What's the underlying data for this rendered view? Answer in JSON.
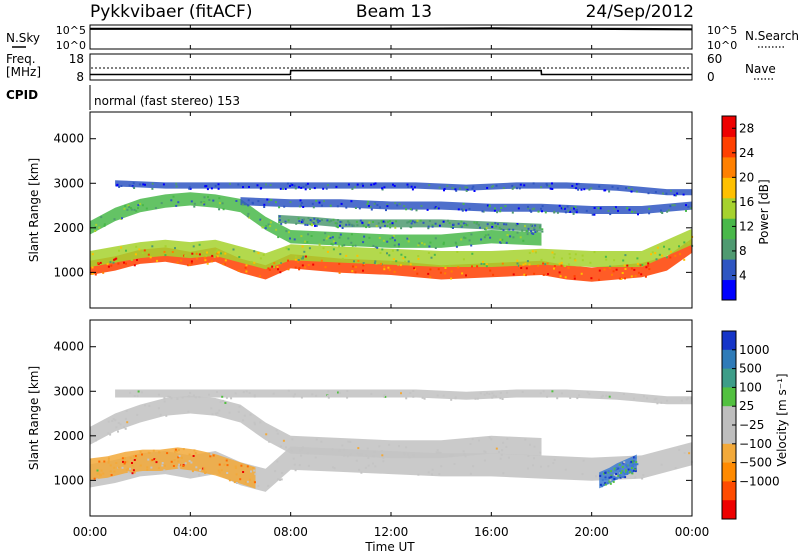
{
  "header": {
    "station": "Pykkvibaer (fitACF)",
    "beam": "Beam 13",
    "date": "24/Sep/2012"
  },
  "mode": {
    "label": "CPID",
    "text": "normal (fast stereo) 153"
  },
  "chart_data": [
    {
      "type": "line",
      "name": "noise-panel",
      "left_label": "N.Sky",
      "right_label": "N.Search",
      "left_ticks": [
        "10^5",
        "10^0"
      ],
      "right_ticks": [
        "10^5",
        "10^0"
      ],
      "xlim": [
        0,
        24
      ],
      "series": [
        {
          "name": "N.Sky",
          "x": [
            0,
            4,
            8,
            12,
            16,
            20,
            24
          ],
          "y": [
            4.2,
            4.2,
            4.2,
            4.2,
            4.3,
            4.2,
            4.1
          ]
        }
      ]
    },
    {
      "type": "line",
      "name": "frequency-panel",
      "left_label": "Freq.",
      "left_unit": "[MHz]",
      "right_label": "Nave",
      "left_ticks": [
        "18",
        "8"
      ],
      "right_ticks": [
        "60",
        "0"
      ],
      "ylim": [
        8,
        18
      ],
      "xlim": [
        0,
        24
      ],
      "series": [
        {
          "name": "Freq.",
          "x": [
            0,
            7.99,
            8.0,
            17.99,
            18.0,
            24
          ],
          "y": [
            10.1,
            10.1,
            11.6,
            11.6,
            10.1,
            10.1
          ]
        }
      ]
    },
    {
      "type": "heatmap",
      "name": "power-panel",
      "ylabel": "Slant Range [km]",
      "xlim": [
        0,
        24
      ],
      "ylim": [
        200,
        4600
      ],
      "y_ticks": [
        1000,
        2000,
        3000,
        4000
      ],
      "colorbar": {
        "label": "Power [dB]",
        "ticks": [
          4,
          8,
          12,
          16,
          20,
          24,
          28
        ],
        "range": [
          0,
          30
        ],
        "colors": [
          "#0000ff",
          "#2f56c2",
          "#4f9a71",
          "#49b84a",
          "#a6d22e",
          "#ffc000",
          "#ff8000",
          "#ff4000",
          "#ee0000"
        ]
      },
      "bands": [
        {
          "x": [
            0,
            1,
            2,
            3,
            4,
            5,
            6,
            7,
            8,
            10,
            12,
            14,
            16,
            18,
            19,
            20,
            21,
            22,
            23,
            24
          ],
          "y": [
            1100,
            1200,
            1350,
            1400,
            1300,
            1400,
            1150,
            1000,
            1250,
            1150,
            1100,
            1000,
            1050,
            1100,
            1000,
            950,
            1000,
            1050,
            1200,
            1600
          ],
          "width": 160,
          "power": 24
        },
        {
          "x": [
            0,
            1,
            2,
            3,
            4,
            5,
            6,
            7,
            8,
            10,
            12,
            14,
            16,
            18,
            20,
            22,
            24
          ],
          "y": [
            1300,
            1400,
            1500,
            1550,
            1500,
            1550,
            1400,
            1250,
            1450,
            1400,
            1350,
            1300,
            1300,
            1350,
            1300,
            1300,
            1800
          ],
          "width": 180,
          "power": 14
        },
        {
          "x": [
            0,
            1,
            2,
            3,
            4,
            5,
            6,
            7,
            8,
            10,
            12,
            14,
            16,
            18
          ],
          "y": [
            2000,
            2300,
            2500,
            2600,
            2650,
            2600,
            2500,
            2100,
            1800,
            1750,
            1700,
            1700,
            1800,
            1750
          ],
          "width": 150,
          "power": 10
        },
        {
          "x": [
            7.5,
            9,
            10,
            12,
            14,
            16,
            18
          ],
          "y": [
            2200,
            2150,
            2100,
            2100,
            2100,
            2050,
            2000
          ],
          "width": 90,
          "power": 8
        },
        {
          "x": [
            6,
            8,
            10,
            12,
            14,
            16,
            18,
            20,
            22,
            24
          ],
          "y": [
            2600,
            2550,
            2550,
            2500,
            2500,
            2450,
            2450,
            2400,
            2400,
            2500
          ],
          "width": 90,
          "power": 6
        },
        {
          "x": [
            1,
            3,
            5,
            7,
            9,
            11,
            13,
            15,
            17,
            19,
            21,
            23,
            24
          ],
          "y": [
            3000,
            2950,
            2950,
            2950,
            2950,
            2950,
            2950,
            2900,
            2950,
            2950,
            2900,
            2800,
            2800
          ],
          "width": 70,
          "power": 4
        }
      ]
    },
    {
      "type": "heatmap",
      "name": "velocity-panel",
      "ylabel": "Slant Range [km]",
      "xlabel": "Time UT",
      "xlim": [
        0,
        24
      ],
      "ylim": [
        200,
        4600
      ],
      "y_ticks": [
        1000,
        2000,
        3000,
        4000
      ],
      "x_ticks": [
        "00:00",
        "04:00",
        "08:00",
        "12:00",
        "16:00",
        "20:00",
        "00:00"
      ],
      "x_tick_values": [
        0,
        4,
        8,
        12,
        16,
        20,
        24
      ],
      "colorbar": {
        "label": "Velocity [m s⁻¹]",
        "ticks": [
          "1000",
          "500",
          "100",
          "25",
          "−25",
          "−100",
          "−500",
          "−1000"
        ],
        "colors": [
          "#1535c8",
          "#2f7bb8",
          "#3d9d88",
          "#52c040",
          "#bebebe",
          "#bebebe",
          "#f2a93a",
          "#ff8a00",
          "#ff4b00",
          "#ee0000"
        ]
      },
      "bands": [
        {
          "x": [
            0,
            1,
            2,
            3,
            4,
            5,
            6,
            7,
            8,
            10,
            12,
            14,
            16,
            18,
            20,
            22,
            24
          ],
          "y": [
            1100,
            1200,
            1350,
            1400,
            1300,
            1400,
            1150,
            1000,
            1500,
            1450,
            1400,
            1350,
            1350,
            1300,
            1250,
            1300,
            1600
          ],
          "width": 260,
          "class": "ground"
        },
        {
          "x": [
            0,
            1,
            2,
            3,
            4,
            5,
            6,
            7,
            8,
            10,
            12,
            14,
            16,
            18
          ],
          "y": [
            2000,
            2300,
            2500,
            2650,
            2700,
            2650,
            2500,
            2100,
            1800,
            1750,
            1700,
            1700,
            1800,
            1750
          ],
          "width": 200,
          "class": "ground"
        },
        {
          "x": [
            1,
            3,
            5,
            7,
            9,
            11,
            13,
            15,
            17,
            19,
            21,
            23,
            24
          ],
          "y": [
            2950,
            2950,
            2950,
            2950,
            2950,
            2950,
            2950,
            2900,
            2950,
            2950,
            2900,
            2800,
            2800
          ],
          "width": 90,
          "class": "ground"
        },
        {
          "x": [
            0,
            0.7,
            1.4,
            2.1,
            2.8,
            3.5,
            4.2,
            5.0,
            5.8,
            6.6
          ],
          "y": [
            1250,
            1300,
            1400,
            1450,
            1450,
            1500,
            1450,
            1350,
            1200,
            1050
          ],
          "width": 240,
          "class": "negative"
        },
        {
          "x": [
            20.3,
            20.7,
            21.0,
            21.4,
            21.8
          ],
          "y": [
            1000,
            1100,
            1200,
            1300,
            1400
          ],
          "width": 180,
          "class": "positive"
        }
      ]
    }
  ]
}
